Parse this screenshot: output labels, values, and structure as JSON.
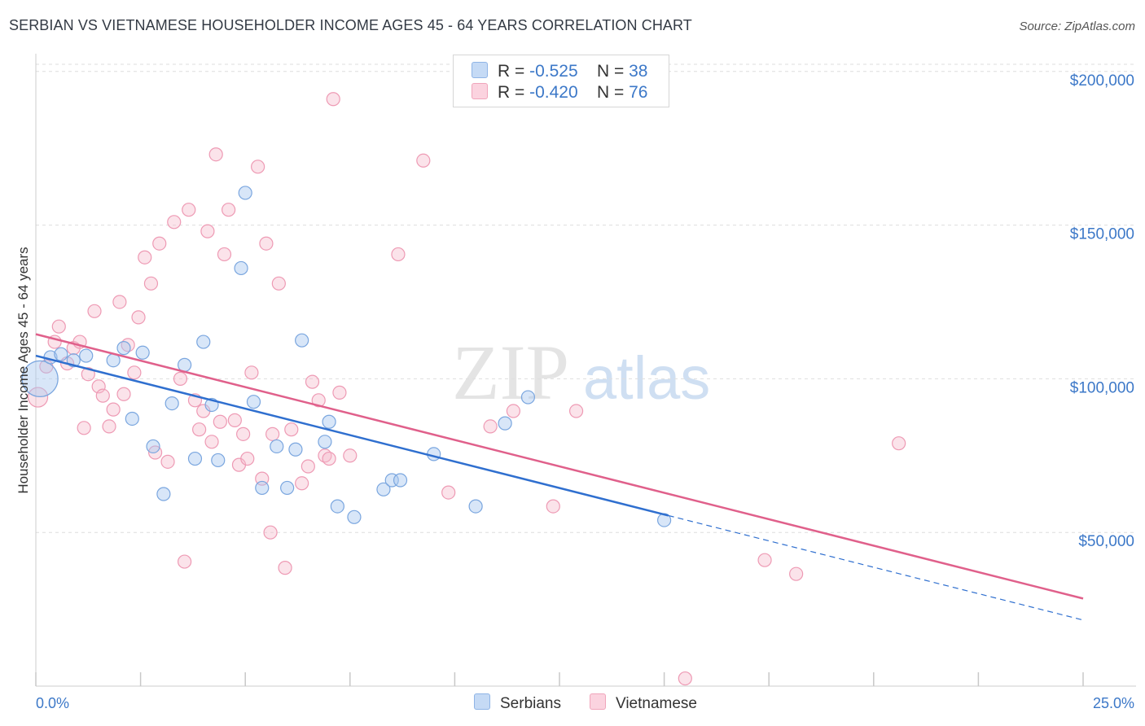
{
  "header": {
    "title": "SERBIAN VS VIETNAMESE HOUSEHOLDER INCOME AGES 45 - 64 YEARS CORRELATION CHART",
    "source": "Source: ZipAtlas.com"
  },
  "watermark": {
    "zip": "ZIP",
    "atlas": "atlas"
  },
  "legend": {
    "rows": [
      {
        "r_label": "R =",
        "r_value": "-0.525",
        "n_label": "N =",
        "n_value": "38",
        "color": "#a9c8f0"
      },
      {
        "r_label": "R =",
        "r_value": "-0.420",
        "n_label": "N =",
        "n_value": "76",
        "color": "#f5b8ca"
      }
    ]
  },
  "bottom_legend": {
    "serbians": "Serbians",
    "vietnamese": "Vietnamese"
  },
  "chart_data": {
    "type": "scatter",
    "title": "SERBIAN VS VIETNAMESE HOUSEHOLDER INCOME AGES 45 - 64 YEARS CORRELATION CHART",
    "xlabel": "",
    "ylabel": "Householder Income Ages 45 - 64 years",
    "xlim": [
      0,
      25
    ],
    "ylim": [
      0,
      210000
    ],
    "x_tick_labels": [
      "0.0%",
      "25.0%"
    ],
    "y_ticks": [
      50000,
      100000,
      150000,
      200000
    ],
    "y_tick_labels": [
      "$50,000",
      "$100,000",
      "$150,000",
      "$200,000"
    ],
    "grid": "horizontal dashed",
    "legend_position": "top-center",
    "series": [
      {
        "name": "Serbians",
        "color": "#a9c8f0",
        "line_color": "#2f6fcf",
        "trend": {
          "x0": 0,
          "y0": 107500,
          "x1": 15.1,
          "y1": 55500,
          "dash_to_x": 25,
          "dash_to_y": 21500
        },
        "points": [
          [
            0.1,
            100000,
            22
          ],
          [
            0.35,
            107000,
            8
          ],
          [
            0.6,
            108000,
            8
          ],
          [
            0.9,
            106000,
            8
          ],
          [
            1.2,
            107500,
            8
          ],
          [
            1.85,
            106000,
            8
          ],
          [
            2.1,
            110000,
            8
          ],
          [
            2.3,
            87000,
            8
          ],
          [
            2.55,
            108500,
            8
          ],
          [
            2.8,
            78000,
            8
          ],
          [
            3.05,
            62500,
            8
          ],
          [
            3.25,
            92000,
            8
          ],
          [
            3.55,
            104500,
            8
          ],
          [
            3.8,
            74000,
            8
          ],
          [
            4.0,
            112000,
            8
          ],
          [
            4.2,
            91500,
            8
          ],
          [
            4.35,
            73500,
            8
          ],
          [
            4.9,
            136000,
            8
          ],
          [
            5.0,
            160500,
            8
          ],
          [
            5.2,
            92500,
            8
          ],
          [
            5.4,
            64500,
            8
          ],
          [
            5.75,
            78000,
            8
          ],
          [
            6.0,
            64500,
            8
          ],
          [
            6.2,
            77000,
            8
          ],
          [
            6.35,
            112500,
            8
          ],
          [
            6.9,
            79500,
            8
          ],
          [
            7.0,
            86000,
            8
          ],
          [
            7.2,
            58500,
            8
          ],
          [
            7.6,
            55000,
            8
          ],
          [
            8.3,
            64000,
            8
          ],
          [
            8.5,
            67000,
            8
          ],
          [
            8.7,
            67000,
            8
          ],
          [
            9.5,
            75500,
            8
          ],
          [
            10.5,
            58500,
            8
          ],
          [
            11.2,
            85500,
            8
          ],
          [
            11.75,
            94000,
            8
          ],
          [
            15.0,
            54000,
            8
          ]
        ]
      },
      {
        "name": "Vietnamese",
        "color": "#f5b8ca",
        "line_color": "#e0608b",
        "trend": {
          "x0": 0,
          "y0": 114500,
          "x1": 25,
          "y1": 28500
        },
        "points": [
          [
            0.05,
            94000,
            12
          ],
          [
            0.25,
            104000,
            8
          ],
          [
            0.45,
            112000,
            8
          ],
          [
            0.55,
            117000,
            8
          ],
          [
            0.75,
            105000,
            8
          ],
          [
            0.9,
            110000,
            8
          ],
          [
            1.05,
            112000,
            8
          ],
          [
            1.15,
            84000,
            8
          ],
          [
            1.25,
            101500,
            8
          ],
          [
            1.4,
            122000,
            8
          ],
          [
            1.5,
            97500,
            8
          ],
          [
            1.6,
            94500,
            8
          ],
          [
            1.75,
            84500,
            8
          ],
          [
            1.85,
            90000,
            8
          ],
          [
            2.0,
            125000,
            8
          ],
          [
            2.1,
            95000,
            8
          ],
          [
            2.2,
            111000,
            8
          ],
          [
            2.35,
            102000,
            8
          ],
          [
            2.45,
            120000,
            8
          ],
          [
            2.6,
            139500,
            8
          ],
          [
            2.75,
            131000,
            8
          ],
          [
            2.85,
            76000,
            8
          ],
          [
            2.95,
            144000,
            8
          ],
          [
            3.15,
            73000,
            8
          ],
          [
            3.3,
            151000,
            8
          ],
          [
            3.45,
            100000,
            8
          ],
          [
            3.55,
            40500,
            8
          ],
          [
            3.65,
            155000,
            8
          ],
          [
            3.8,
            93000,
            8
          ],
          [
            3.9,
            83500,
            8
          ],
          [
            4.0,
            89500,
            8
          ],
          [
            4.1,
            148000,
            8
          ],
          [
            4.2,
            79500,
            8
          ],
          [
            4.3,
            173000,
            8
          ],
          [
            4.4,
            86000,
            8
          ],
          [
            4.5,
            140500,
            8
          ],
          [
            4.6,
            155000,
            8
          ],
          [
            4.75,
            86500,
            8
          ],
          [
            4.85,
            72000,
            8
          ],
          [
            4.95,
            82000,
            8
          ],
          [
            5.05,
            74000,
            8
          ],
          [
            5.15,
            102000,
            8
          ],
          [
            5.3,
            169000,
            8
          ],
          [
            5.4,
            67500,
            8
          ],
          [
            5.5,
            144000,
            8
          ],
          [
            5.6,
            50000,
            8
          ],
          [
            5.65,
            82000,
            8
          ],
          [
            5.8,
            131000,
            8
          ],
          [
            5.95,
            38500,
            8
          ],
          [
            6.1,
            83500,
            8
          ],
          [
            6.35,
            66000,
            8
          ],
          [
            6.5,
            71500,
            8
          ],
          [
            6.6,
            99000,
            8
          ],
          [
            6.75,
            93000,
            8
          ],
          [
            6.9,
            75000,
            8
          ],
          [
            7.0,
            74000,
            8
          ],
          [
            7.1,
            191000,
            8
          ],
          [
            7.25,
            95500,
            8
          ],
          [
            7.5,
            75000,
            8
          ],
          [
            8.65,
            140500,
            8
          ],
          [
            9.25,
            171000,
            8
          ],
          [
            9.85,
            63000,
            8
          ],
          [
            10.85,
            84500,
            8
          ],
          [
            11.4,
            89500,
            8
          ],
          [
            12.35,
            58500,
            8
          ],
          [
            12.9,
            89500,
            8
          ],
          [
            15.5,
            2500,
            8
          ],
          [
            17.4,
            41000,
            8
          ],
          [
            18.15,
            36500,
            8
          ],
          [
            20.6,
            79000,
            8
          ]
        ]
      }
    ]
  }
}
